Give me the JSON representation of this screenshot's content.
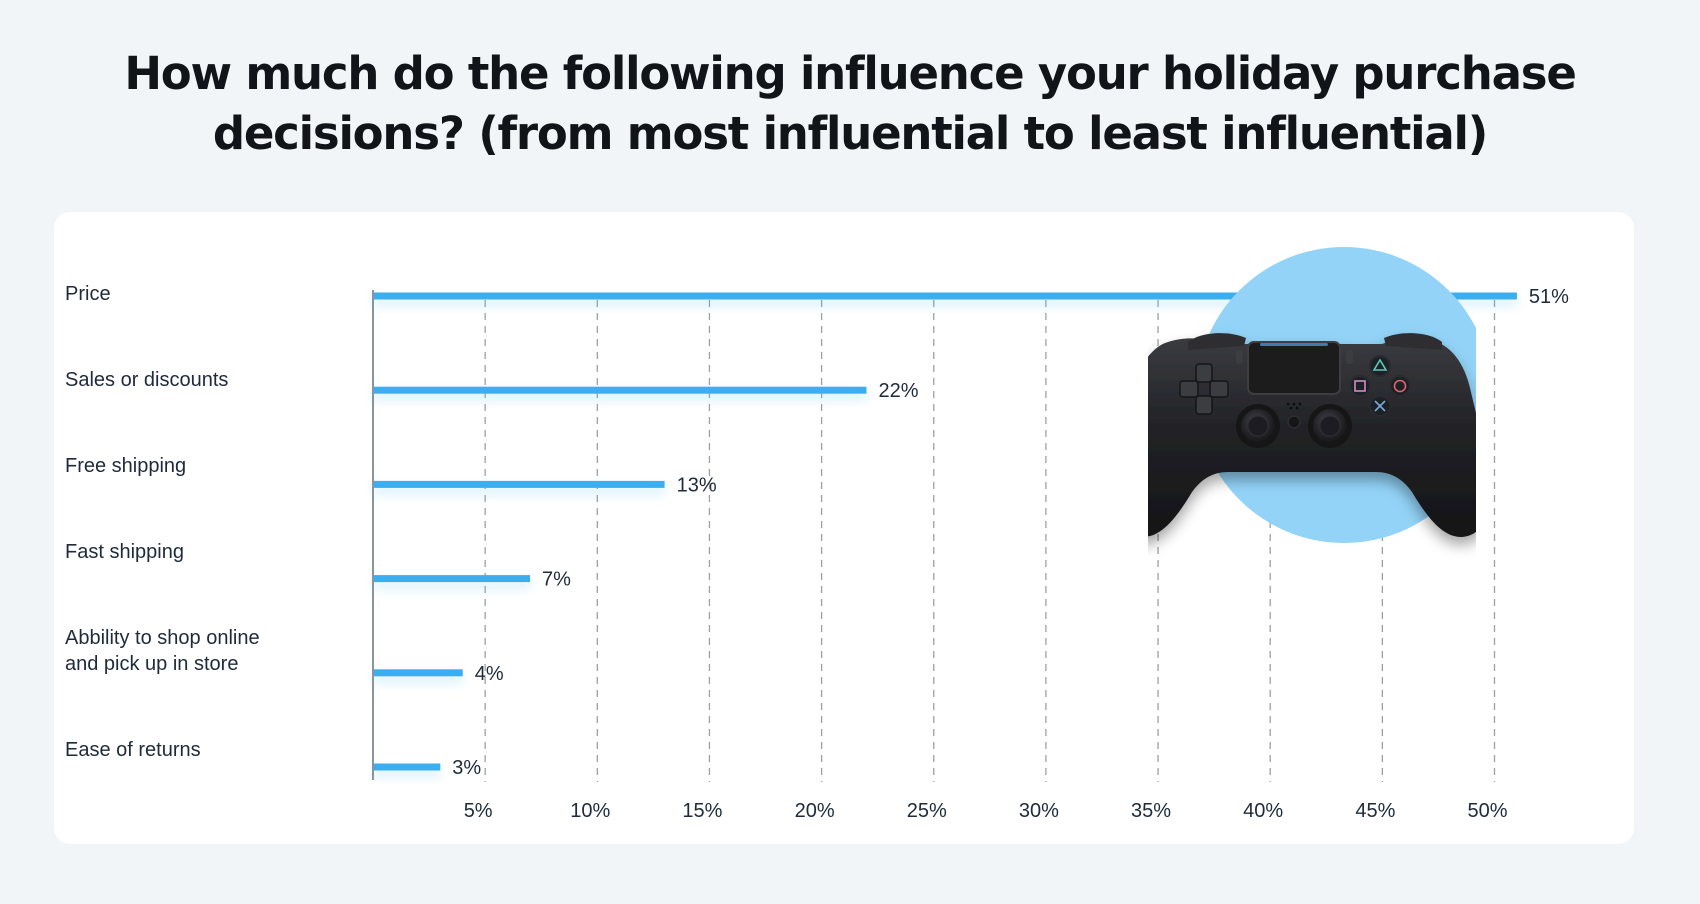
{
  "title": "How much do the following influence your holiday purchase decisions? (from most influential to least influential)",
  "chart_data": {
    "type": "bar",
    "orientation": "horizontal",
    "title": "How much do the following influence your holiday purchase decisions? (from most influential to least influential)",
    "categories": [
      "Price",
      "Sales or discounts",
      "Free shipping",
      "Fast shipping",
      "Abbility to shop online and pick up in store",
      "Ease  of returns"
    ],
    "category_lines": [
      [
        "Price"
      ],
      [
        "Sales or discounts"
      ],
      [
        "Free shipping"
      ],
      [
        "Fast shipping"
      ],
      [
        "Abbility to shop online",
        "and pick up in store"
      ],
      [
        "Ease  of returns"
      ]
    ],
    "values": [
      51,
      22,
      13,
      7,
      4,
      3
    ],
    "value_labels": [
      "51%",
      "22%",
      "13%",
      "7%",
      "4%",
      "3%"
    ],
    "xticks": [
      5,
      10,
      15,
      20,
      25,
      30,
      35,
      40,
      45,
      50
    ],
    "xtick_labels": [
      "5%",
      "10%",
      "15%",
      "20%",
      "25%",
      "30%",
      "35%",
      "40%",
      "45%",
      "50%"
    ],
    "xlim": [
      0,
      50
    ],
    "grid": "vertical dashed",
    "legend": "none",
    "colors": {
      "bar": "#3aaeef",
      "grid": "#9aa0a8",
      "axis": "#8a93a0",
      "text": "#1f2a3a",
      "circle": "#92d3f7"
    }
  },
  "illustration": {
    "icon": "gamepad-controller-icon",
    "colors": {
      "body": "#1f1f22",
      "highlight": "#3a3b40",
      "triangle": "#5cc8c0",
      "circle": "#e2607a",
      "square": "#d08ac8",
      "cross": "#7aa8e0",
      "lightbar": "#4a90d9"
    }
  }
}
